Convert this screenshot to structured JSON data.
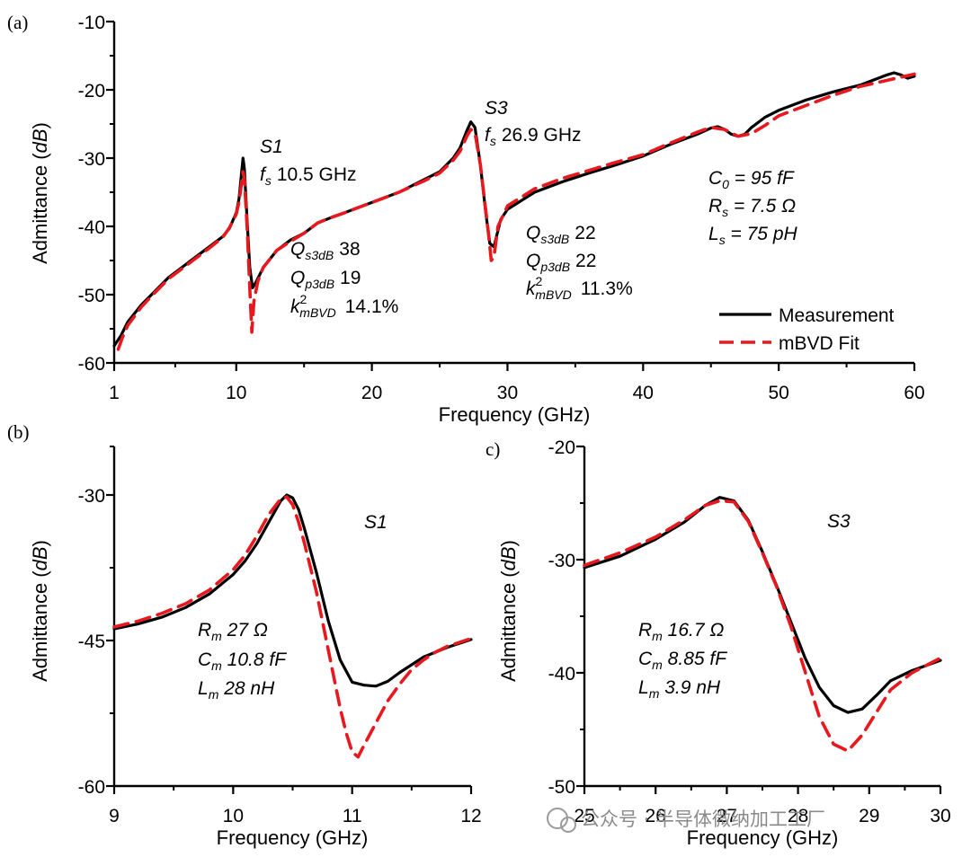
{
  "watermark": "公众号 · 半导体微纳加工工厂",
  "colors": {
    "measurement": "#000000",
    "fit": "#e8191e"
  },
  "chart_data": [
    {
      "id": "a",
      "panel_label": "(a)",
      "type": "line",
      "xlabel": "Frequency (GHz)",
      "ylabel_prefix": "Admittance (",
      "ylabel_unit": "dB",
      "ylabel_suffix": ")",
      "xlim": [
        1,
        60
      ],
      "ylim": [
        -60,
        -10
      ],
      "xticks": [
        1,
        10,
        20,
        30,
        40,
        50,
        60
      ],
      "yticks": [
        -60,
        -50,
        -40,
        -30,
        -20,
        -10
      ],
      "legend": {
        "position": "bottom-right",
        "entries": [
          {
            "label": "Measurement",
            "style": "solid",
            "color": "#000000"
          },
          {
            "label": "mBVD Fit",
            "style": "dashed",
            "color": "#e8191e"
          }
        ]
      },
      "annotations": {
        "s1_name": "S1",
        "s1_fs_sym": "f",
        "s1_fs_sub": "s",
        "s1_fs_val": "10.5 GHz",
        "s1_q1_sym": "Q",
        "s1_q1_sub": "s3dB",
        "s1_q1_val": "38",
        "s1_q2_sym": "Q",
        "s1_q2_sub": "p3dB",
        "s1_q2_val": "19",
        "s1_k_sym": "k",
        "s1_k_sup": "2",
        "s1_k_sub": "mBVD",
        "s1_k_val": "14.1%",
        "s3_name": "S3",
        "s3_fs_sym": "f",
        "s3_fs_sub": "s",
        "s3_fs_val": "26.9 GHz",
        "s3_q1_sym": "Q",
        "s3_q1_sub": "s3dB",
        "s3_q1_val": "22",
        "s3_q2_sym": "Q",
        "s3_q2_sub": "p3dB",
        "s3_q2_val": "22",
        "s3_k_sym": "k",
        "s3_k_sup": "2",
        "s3_k_sub": "mBVD",
        "s3_k_val": "11.3%",
        "c0_sym": "C",
        "c0_sub": "0",
        "c0_val": " = 95 fF",
        "rs_sym": "R",
        "rs_sub": "s",
        "rs_val": " = 7.5 Ω",
        "ls_sym": "L",
        "ls_sub": "s",
        "ls_val": " = 75 pH"
      },
      "series": [
        {
          "name": "Measurement",
          "x": [
            1,
            1.5,
            2,
            3,
            4,
            5,
            6,
            7,
            8,
            9,
            9.5,
            10,
            10.2,
            10.4,
            10.5,
            10.6,
            10.8,
            11,
            11.2,
            11.5,
            12,
            13,
            14,
            15,
            16,
            17,
            18,
            20,
            22,
            24,
            25,
            26,
            26.5,
            27,
            27.3,
            27.6,
            28,
            28.4,
            28.7,
            29,
            29.5,
            30,
            32,
            34,
            36,
            38,
            40,
            42,
            44,
            45,
            45.5,
            46,
            46.5,
            47,
            47.5,
            48,
            49,
            50,
            52,
            54,
            56,
            58,
            58.5,
            59,
            59.5,
            60
          ],
          "y": [
            -57.5,
            -56,
            -54,
            -51.5,
            -49.5,
            -47.5,
            -46,
            -44.5,
            -43,
            -41.5,
            -40.3,
            -38,
            -36,
            -32,
            -30,
            -31.5,
            -39,
            -46,
            -49,
            -48,
            -46,
            -43.5,
            -42,
            -41,
            -39.5,
            -38.7,
            -38,
            -36.5,
            -35,
            -33,
            -32,
            -30,
            -28.5,
            -26,
            -24.7,
            -25.5,
            -31,
            -38,
            -42.5,
            -43,
            -39,
            -37.5,
            -35,
            -33.5,
            -32.2,
            -31,
            -29.7,
            -28,
            -26.5,
            -25.6,
            -25.4,
            -25.8,
            -26.5,
            -26.8,
            -26.5,
            -25.5,
            -24,
            -23,
            -21.5,
            -20.3,
            -19.3,
            -17.8,
            -17.5,
            -17.8,
            -18.3,
            -18
          ]
        },
        {
          "name": "mBVD Fit",
          "x": [
            1.3,
            1.6,
            2,
            3,
            4,
            5,
            6,
            7,
            8,
            9,
            9.5,
            10,
            10.2,
            10.4,
            10.5,
            10.6,
            10.8,
            11,
            11.15,
            11.3,
            11.6,
            12,
            13,
            14,
            15,
            16,
            17,
            18,
            20,
            22,
            24,
            25,
            26,
            26.5,
            27,
            27.3,
            27.6,
            28,
            28.3,
            28.6,
            28.8,
            29,
            29.3,
            30,
            32,
            34,
            36,
            38,
            40,
            42,
            44,
            45,
            46,
            47,
            48,
            49,
            50,
            52,
            54,
            56,
            58,
            60
          ],
          "y": [
            -58,
            -56.3,
            -54.5,
            -51.8,
            -49.7,
            -47.7,
            -46.2,
            -44.7,
            -43.2,
            -41.6,
            -40.2,
            -38.2,
            -36.5,
            -33.5,
            -32,
            -33,
            -40,
            -49,
            -55.5,
            -51,
            -48,
            -46,
            -43.5,
            -42.2,
            -41,
            -39.5,
            -38.7,
            -38,
            -36.5,
            -35,
            -33.2,
            -32.2,
            -30.3,
            -29,
            -26.8,
            -25.8,
            -26.3,
            -31,
            -36,
            -41,
            -45,
            -44.5,
            -40,
            -37,
            -34.5,
            -33,
            -31.8,
            -30.6,
            -29.5,
            -27.8,
            -26.2,
            -25.5,
            -25.8,
            -26.8,
            -26.4,
            -25.2,
            -23.8,
            -22.3,
            -20.8,
            -19.5,
            -18.6,
            -17.7
          ]
        }
      ]
    },
    {
      "id": "b",
      "panel_label": "(b)",
      "type": "line",
      "xlabel": "Frequency (GHz)",
      "ylabel_prefix": "Admittance (",
      "ylabel_unit": "dB",
      "ylabel_suffix": ")",
      "xlim": [
        9,
        12
      ],
      "ylim": [
        -60,
        -25
      ],
      "xticks": [
        9,
        10,
        11,
        12
      ],
      "yticks": [
        -60,
        -45,
        -30
      ],
      "annotations": {
        "name": "S1",
        "rm_sym": "R",
        "rm_sub": "m",
        "rm_val": " 27 Ω",
        "cm_sym": "C",
        "cm_sub": "m",
        "cm_val": " 10.8 fF",
        "lm_sym": "L",
        "lm_sub": "m",
        "lm_val": " 28 nH"
      },
      "series": [
        {
          "name": "Measurement",
          "x": [
            9,
            9.2,
            9.4,
            9.6,
            9.8,
            10,
            10.1,
            10.2,
            10.3,
            10.4,
            10.45,
            10.5,
            10.55,
            10.6,
            10.7,
            10.8,
            10.9,
            11,
            11.1,
            11.2,
            11.3,
            11.4,
            11.5,
            11.6,
            11.7,
            11.8,
            11.9,
            12
          ],
          "y": [
            -43.8,
            -43.3,
            -42.6,
            -41.6,
            -40.2,
            -38.2,
            -36.8,
            -35,
            -32.8,
            -30.6,
            -30,
            -30.3,
            -31.5,
            -33.5,
            -38,
            -43,
            -47,
            -49.3,
            -49.6,
            -49.7,
            -49.2,
            -48.3,
            -47.5,
            -46.7,
            -46.2,
            -45.7,
            -45.3,
            -44.9
          ]
        },
        {
          "name": "mBVD Fit",
          "x": [
            9,
            9.2,
            9.4,
            9.6,
            9.8,
            10,
            10.1,
            10.2,
            10.3,
            10.4,
            10.45,
            10.5,
            10.55,
            10.6,
            10.7,
            10.8,
            10.9,
            10.95,
            11,
            11.05,
            11.1,
            11.2,
            11.3,
            11.4,
            11.5,
            11.6,
            11.7,
            11.8,
            11.9,
            12
          ],
          "y": [
            -43.6,
            -43,
            -42.2,
            -41.2,
            -39.8,
            -37.7,
            -36.2,
            -34.2,
            -32,
            -30.4,
            -30.2,
            -31,
            -32.8,
            -35,
            -40,
            -46,
            -52,
            -54.5,
            -56.5,
            -57,
            -55.8,
            -53.5,
            -51.2,
            -49.5,
            -48,
            -47,
            -46.2,
            -45.6,
            -45.2,
            -44.8
          ]
        }
      ]
    },
    {
      "id": "c",
      "panel_label": "c)",
      "type": "line",
      "xlabel": "Frequency (GHz)",
      "ylabel_prefix": "Admittance (",
      "ylabel_unit": "dB",
      "ylabel_suffix": ")",
      "xlim": [
        25,
        30
      ],
      "ylim": [
        -50,
        -20
      ],
      "xticks": [
        25,
        26,
        27,
        28,
        29,
        30
      ],
      "yticks": [
        -50,
        -40,
        -30,
        -20
      ],
      "annotations": {
        "name": "S3",
        "rm_sym": "R",
        "rm_sub": "m",
        "rm_val": " 16.7 Ω",
        "cm_sym": "C",
        "cm_sub": "m",
        "cm_val": " 8.85 fF",
        "lm_sym": "L",
        "lm_sub": "m",
        "lm_val": " 3.9 nH"
      },
      "series": [
        {
          "name": "Measurement",
          "x": [
            25,
            25.5,
            26,
            26.4,
            26.7,
            26.9,
            27.1,
            27.3,
            27.5,
            27.7,
            27.9,
            28.1,
            28.3,
            28.5,
            28.7,
            28.9,
            29.1,
            29.3,
            29.6,
            30
          ],
          "y": [
            -30.7,
            -29.7,
            -28.2,
            -26.7,
            -25.2,
            -24.5,
            -24.8,
            -26.5,
            -29.3,
            -32.3,
            -35.5,
            -38.7,
            -41.3,
            -42.9,
            -43.5,
            -43.2,
            -42,
            -40.7,
            -39.8,
            -38.9
          ]
        },
        {
          "name": "mBVD Fit",
          "x": [
            25,
            25.5,
            26,
            26.4,
            26.7,
            26.9,
            27.1,
            27.3,
            27.5,
            27.7,
            27.9,
            28.1,
            28.3,
            28.5,
            28.7,
            28.9,
            29.1,
            29.3,
            29.6,
            30
          ],
          "y": [
            -30.5,
            -29.4,
            -28,
            -26.5,
            -25.2,
            -24.8,
            -24.9,
            -26.6,
            -29.4,
            -32.4,
            -35.9,
            -39.9,
            -43.9,
            -46.3,
            -46.9,
            -45.5,
            -43.5,
            -41.5,
            -40,
            -38.7
          ]
        }
      ]
    }
  ]
}
